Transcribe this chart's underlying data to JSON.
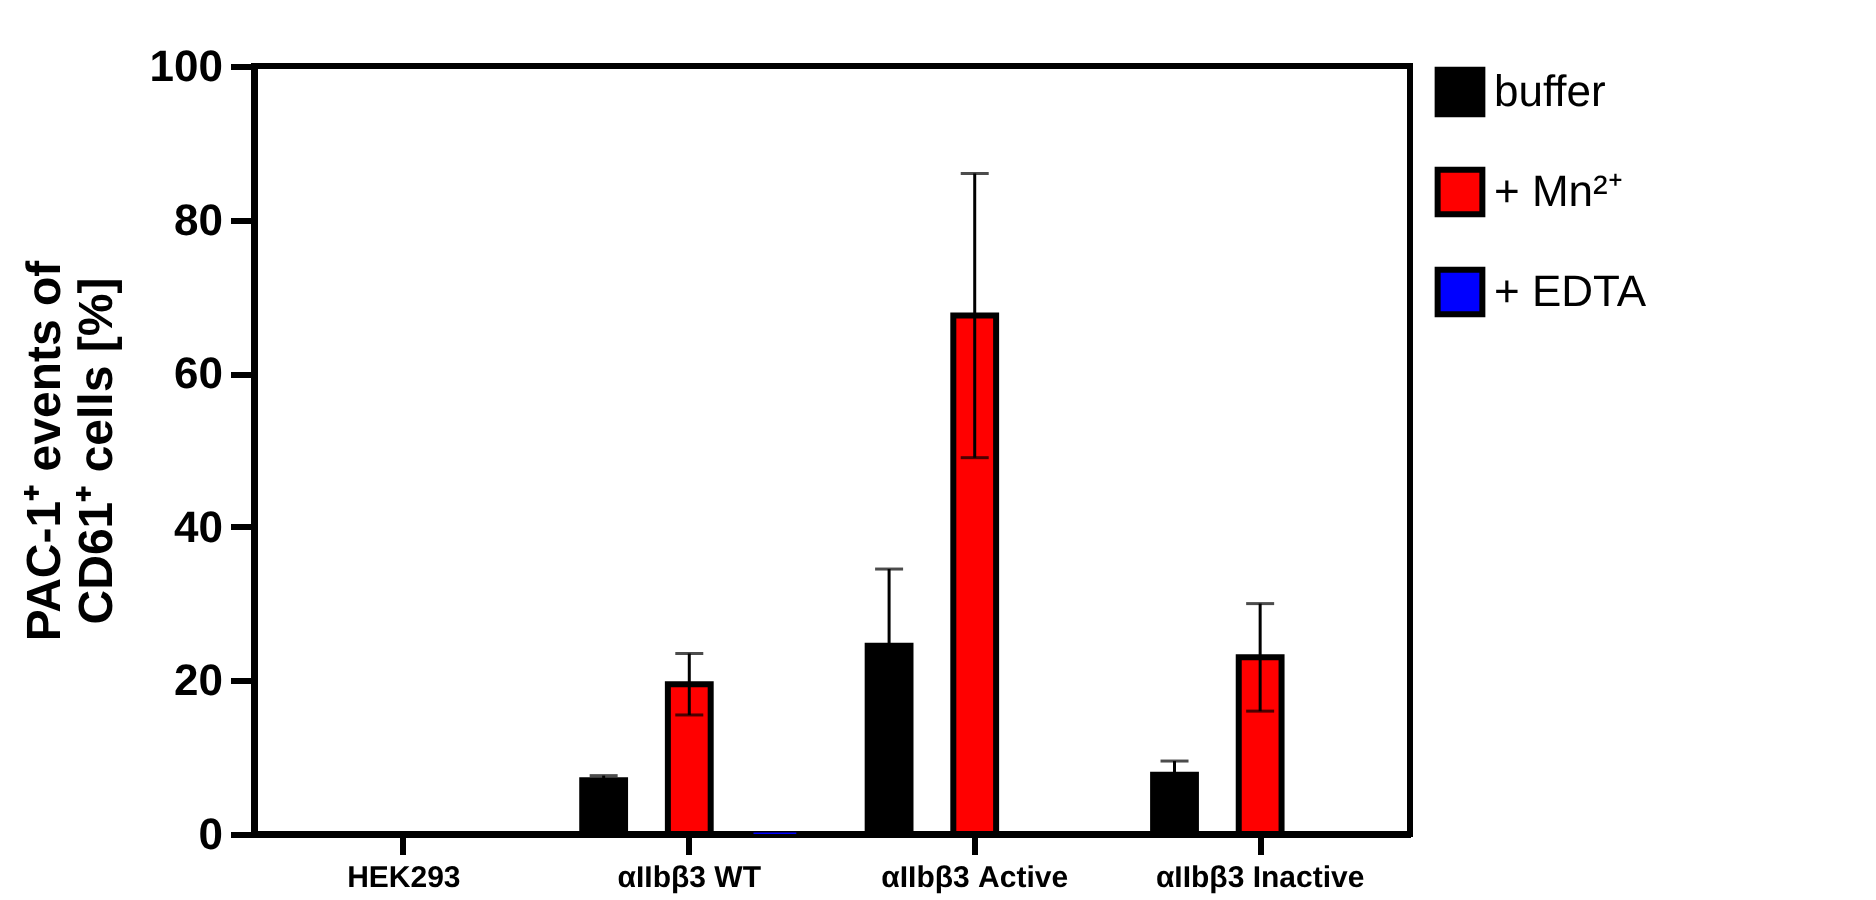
{
  "chart_data": {
    "type": "bar",
    "ylabel": "PAC-1⁺ events of\nCD61⁺ cells [%]",
    "categories": [
      "HEK293",
      "αIIbβ3 WT",
      "αIIbβ3 Active",
      "αIIbβ3 Inactive"
    ],
    "series": [
      {
        "name": "buffer",
        "color": "#000000",
        "values": [
          0,
          7,
          24.5,
          7.7
        ],
        "errors": [
          null,
          0.6,
          10,
          1.8
        ]
      },
      {
        "name": "+ Mn²⁺",
        "color": "#ff0000",
        "values": [
          0,
          19.5,
          67.5,
          23
        ],
        "errors": [
          null,
          4,
          18.5,
          7
        ]
      },
      {
        "name": "+ EDTA",
        "color": "#0000ff",
        "values": [
          0,
          0.2,
          0,
          0
        ],
        "errors": [
          null,
          null,
          null,
          null
        ]
      }
    ],
    "ylim": [
      0,
      100
    ],
    "yticks": [
      0,
      20,
      40,
      60,
      80,
      100
    ],
    "grid": false,
    "legend": "top right"
  }
}
